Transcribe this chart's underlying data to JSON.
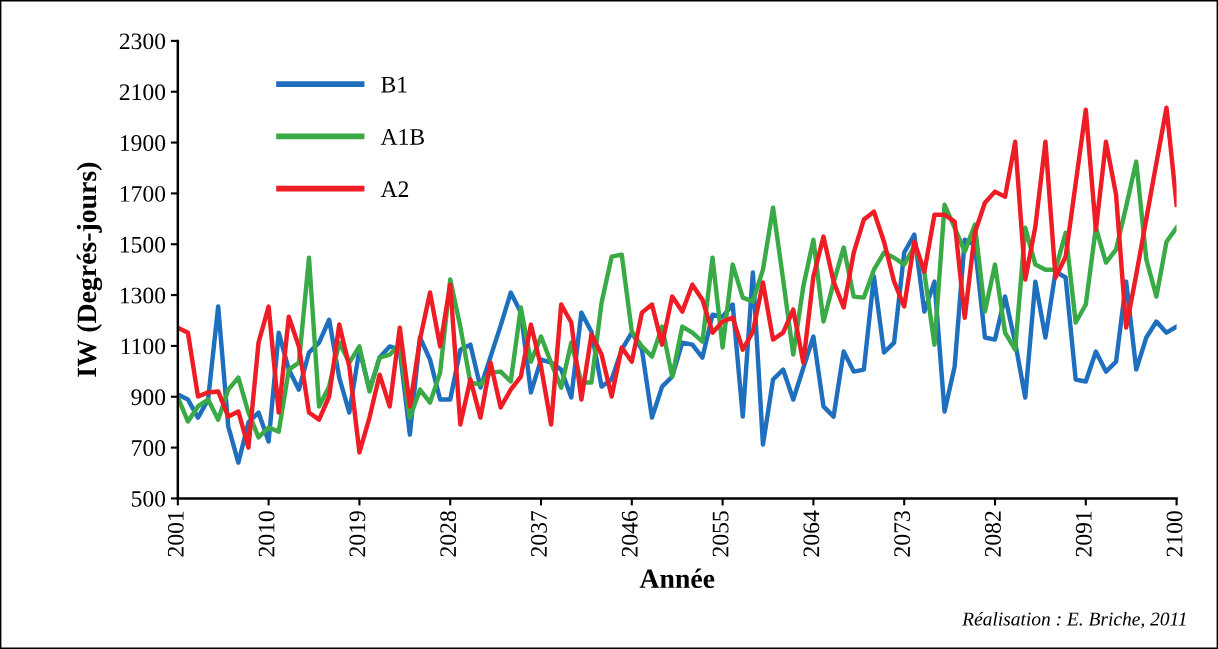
{
  "chart_data": {
    "type": "line",
    "xlabel": "Année",
    "ylabel": "IW (Degrés-jours)",
    "x": [
      2001,
      2002,
      2003,
      2004,
      2005,
      2006,
      2007,
      2008,
      2009,
      2010,
      2011,
      2012,
      2013,
      2014,
      2015,
      2016,
      2017,
      2018,
      2019,
      2020,
      2021,
      2022,
      2023,
      2024,
      2025,
      2026,
      2027,
      2028,
      2029,
      2030,
      2031,
      2032,
      2033,
      2034,
      2035,
      2036,
      2037,
      2038,
      2039,
      2040,
      2041,
      2042,
      2043,
      2044,
      2045,
      2046,
      2047,
      2048,
      2049,
      2050,
      2051,
      2052,
      2053,
      2054,
      2055,
      2056,
      2057,
      2058,
      2059,
      2060,
      2061,
      2062,
      2063,
      2064,
      2065,
      2066,
      2067,
      2068,
      2069,
      2070,
      2071,
      2072,
      2073,
      2074,
      2075,
      2076,
      2077,
      2078,
      2079,
      2080,
      2081,
      2082,
      2083,
      2084,
      2085,
      2086,
      2087,
      2088,
      2089,
      2090,
      2091,
      2092,
      2093,
      2094,
      2095,
      2096,
      2097,
      2098,
      2099,
      2100
    ],
    "series": [
      {
        "name": "B1",
        "color": "#1f6fbf",
        "values": [
          909,
          889,
          818,
          889,
          1255,
          783,
          641,
          799,
          838,
          724,
          1152,
          1007,
          928,
          1074,
          1113,
          1203,
          975,
          838,
          1085,
          928,
          1054,
          1098,
          1085,
          751,
          1133,
          1046,
          889,
          889,
          1085,
          1105,
          936,
          1058,
          1180,
          1310,
          1231,
          917,
          1046,
          1034,
          1007,
          897,
          1231,
          1156,
          940,
          968,
          1085,
          1152,
          1085,
          818,
          940,
          979,
          1113,
          1105,
          1054,
          1223,
          1215,
          1263,
          822,
          1389,
          712,
          968,
          1007,
          889,
          1013,
          1137,
          862,
          822,
          1078,
          999,
          1007,
          1373,
          1074,
          1113,
          1467,
          1538,
          1235,
          1353,
          842,
          1019,
          1518,
          1498,
          1133,
          1125,
          1294,
          1113,
          897,
          1353,
          1133,
          1392,
          1369,
          968,
          960,
          1078,
          999,
          1038,
          1353,
          1007,
          1133,
          1196,
          1152,
          1176
        ]
      },
      {
        "name": "A1B",
        "color": "#3aaa47",
        "values": [
          897,
          803,
          862,
          889,
          810,
          928,
          975,
          838,
          740,
          779,
          763,
          1007,
          1034,
          1447,
          862,
          940,
          1113,
          1034,
          1098,
          921,
          1054,
          1066,
          1105,
          818,
          928,
          877,
          995,
          1361,
          1176,
          956,
          948,
          995,
          999,
          960,
          1251,
          1038,
          1137,
          1034,
          936,
          1113,
          956,
          956,
          1270,
          1451,
          1459,
          1156,
          1098,
          1058,
          1176,
          979,
          1176,
          1152,
          1117,
          1447,
          1094,
          1420,
          1290,
          1275,
          1400,
          1644,
          1361,
          1066,
          1334,
          1518,
          1196,
          1349,
          1487,
          1294,
          1290,
          1400,
          1467,
          1447,
          1420,
          1491,
          1389,
          1105,
          1655,
          1565,
          1471,
          1577,
          1235,
          1420,
          1152,
          1085,
          1565,
          1420,
          1400,
          1400,
          1545,
          1192,
          1263,
          1565,
          1428,
          1479,
          1648,
          1825,
          1440,
          1294,
          1510,
          1565
        ]
      },
      {
        "name": "A2",
        "color": "#ee1c25",
        "values": [
          1172,
          1152,
          901,
          917,
          921,
          822,
          842,
          700,
          1113,
          1255,
          838,
          1215,
          1098,
          838,
          810,
          901,
          1184,
          1019,
          681,
          818,
          987,
          862,
          1172,
          862,
          1125,
          1310,
          1098,
          1341,
          791,
          968,
          818,
          1034,
          858,
          928,
          979,
          1184,
          1019,
          791,
          1263,
          1192,
          889,
          1145,
          1066,
          901,
          1094,
          1038,
          1231,
          1263,
          1105,
          1294,
          1235,
          1341,
          1282,
          1152,
          1196,
          1211,
          1085,
          1156,
          1349,
          1125,
          1152,
          1243,
          1034,
          1373,
          1530,
          1353,
          1251,
          1467,
          1597,
          1628,
          1510,
          1353,
          1255,
          1510,
          1392,
          1616,
          1616,
          1589,
          1211,
          1545,
          1663,
          1707,
          1687,
          1903,
          1361,
          1569,
          1903,
          1369,
          1451,
          1740,
          2029,
          1557,
          1903,
          1695,
          1172,
          1380,
          1600,
          1820,
          2037,
          1655
        ]
      }
    ],
    "xlim": [
      2001,
      2100
    ],
    "xticks": [
      2001,
      2010,
      2019,
      2028,
      2037,
      2046,
      2055,
      2064,
      2073,
      2082,
      2091,
      2100
    ],
    "ylim": [
      500,
      2300
    ],
    "yticks": [
      500,
      700,
      900,
      1100,
      1300,
      1500,
      1700,
      1900,
      2100,
      2300
    ],
    "grid": false,
    "legend": "top left",
    "marker": "none",
    "line_style": "solid",
    "annotations": [
      "Réalisation : E. Briche, 2011"
    ]
  }
}
